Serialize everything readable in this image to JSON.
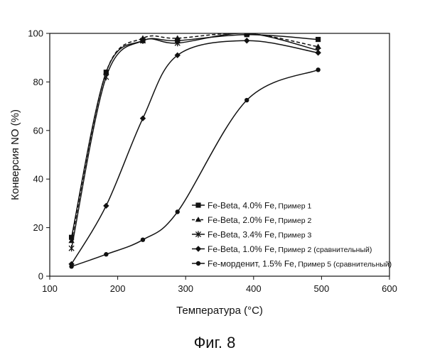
{
  "chart_data": {
    "type": "line",
    "xlabel": "Температура (°С)",
    "ylabel": "Конверсия NO (%)",
    "xlim": [
      100,
      600
    ],
    "ylim": [
      0,
      100
    ],
    "x_ticks": [
      "100",
      "200",
      "300",
      "400",
      "500",
      "600"
    ],
    "y_ticks": [
      "0",
      "20",
      "40",
      "60",
      "80",
      "100"
    ],
    "grid": false,
    "legend_position": "bottom-right",
    "series": [
      {
        "name": "Fe-Beta, 4.0% Fe,",
        "note": "Пример 1",
        "marker": "square",
        "line": "solid",
        "color": "#111111",
        "points": [
          [
            132,
            16
          ],
          [
            183,
            84
          ],
          [
            237,
            97
          ],
          [
            288,
            97
          ],
          [
            390,
            99.5
          ],
          [
            495,
            97.5
          ]
        ]
      },
      {
        "name": "Fe-Beta, 2.0% Fe,",
        "note": "Пример 2",
        "marker": "triangle",
        "line": "dashed",
        "color": "#111111",
        "points": [
          [
            132,
            14.5
          ],
          [
            183,
            84
          ],
          [
            237,
            98
          ],
          [
            288,
            98
          ],
          [
            390,
            100
          ],
          [
            495,
            94.5
          ]
        ]
      },
      {
        "name": "Fe-Beta, 3.4% Fe,",
        "note": "Пример 3",
        "marker": "star",
        "line": "solid",
        "color": "#111111",
        "points": [
          [
            132,
            11.5
          ],
          [
            183,
            82
          ],
          [
            237,
            97
          ],
          [
            288,
            96
          ],
          [
            390,
            100
          ],
          [
            495,
            93
          ]
        ]
      },
      {
        "name": "Fe-Beta, 1.0% Fe,",
        "note": "Пример 2 (сравнительный)",
        "marker": "diamond",
        "line": "solid",
        "color": "#111111",
        "points": [
          [
            132,
            5
          ],
          [
            183,
            29
          ],
          [
            237,
            65
          ],
          [
            288,
            91
          ],
          [
            390,
            97
          ],
          [
            495,
            92
          ]
        ]
      },
      {
        "name": "Fe-морденит, 1.5% Fe,",
        "note": "Пример 5 (сравнительный)",
        "marker": "circle",
        "line": "solid",
        "color": "#111111",
        "points": [
          [
            132,
            4
          ],
          [
            183,
            9
          ],
          [
            237,
            15
          ],
          [
            288,
            26.5
          ],
          [
            390,
            72.5
          ],
          [
            495,
            85
          ]
        ]
      }
    ]
  },
  "caption": "Фиг. 8"
}
